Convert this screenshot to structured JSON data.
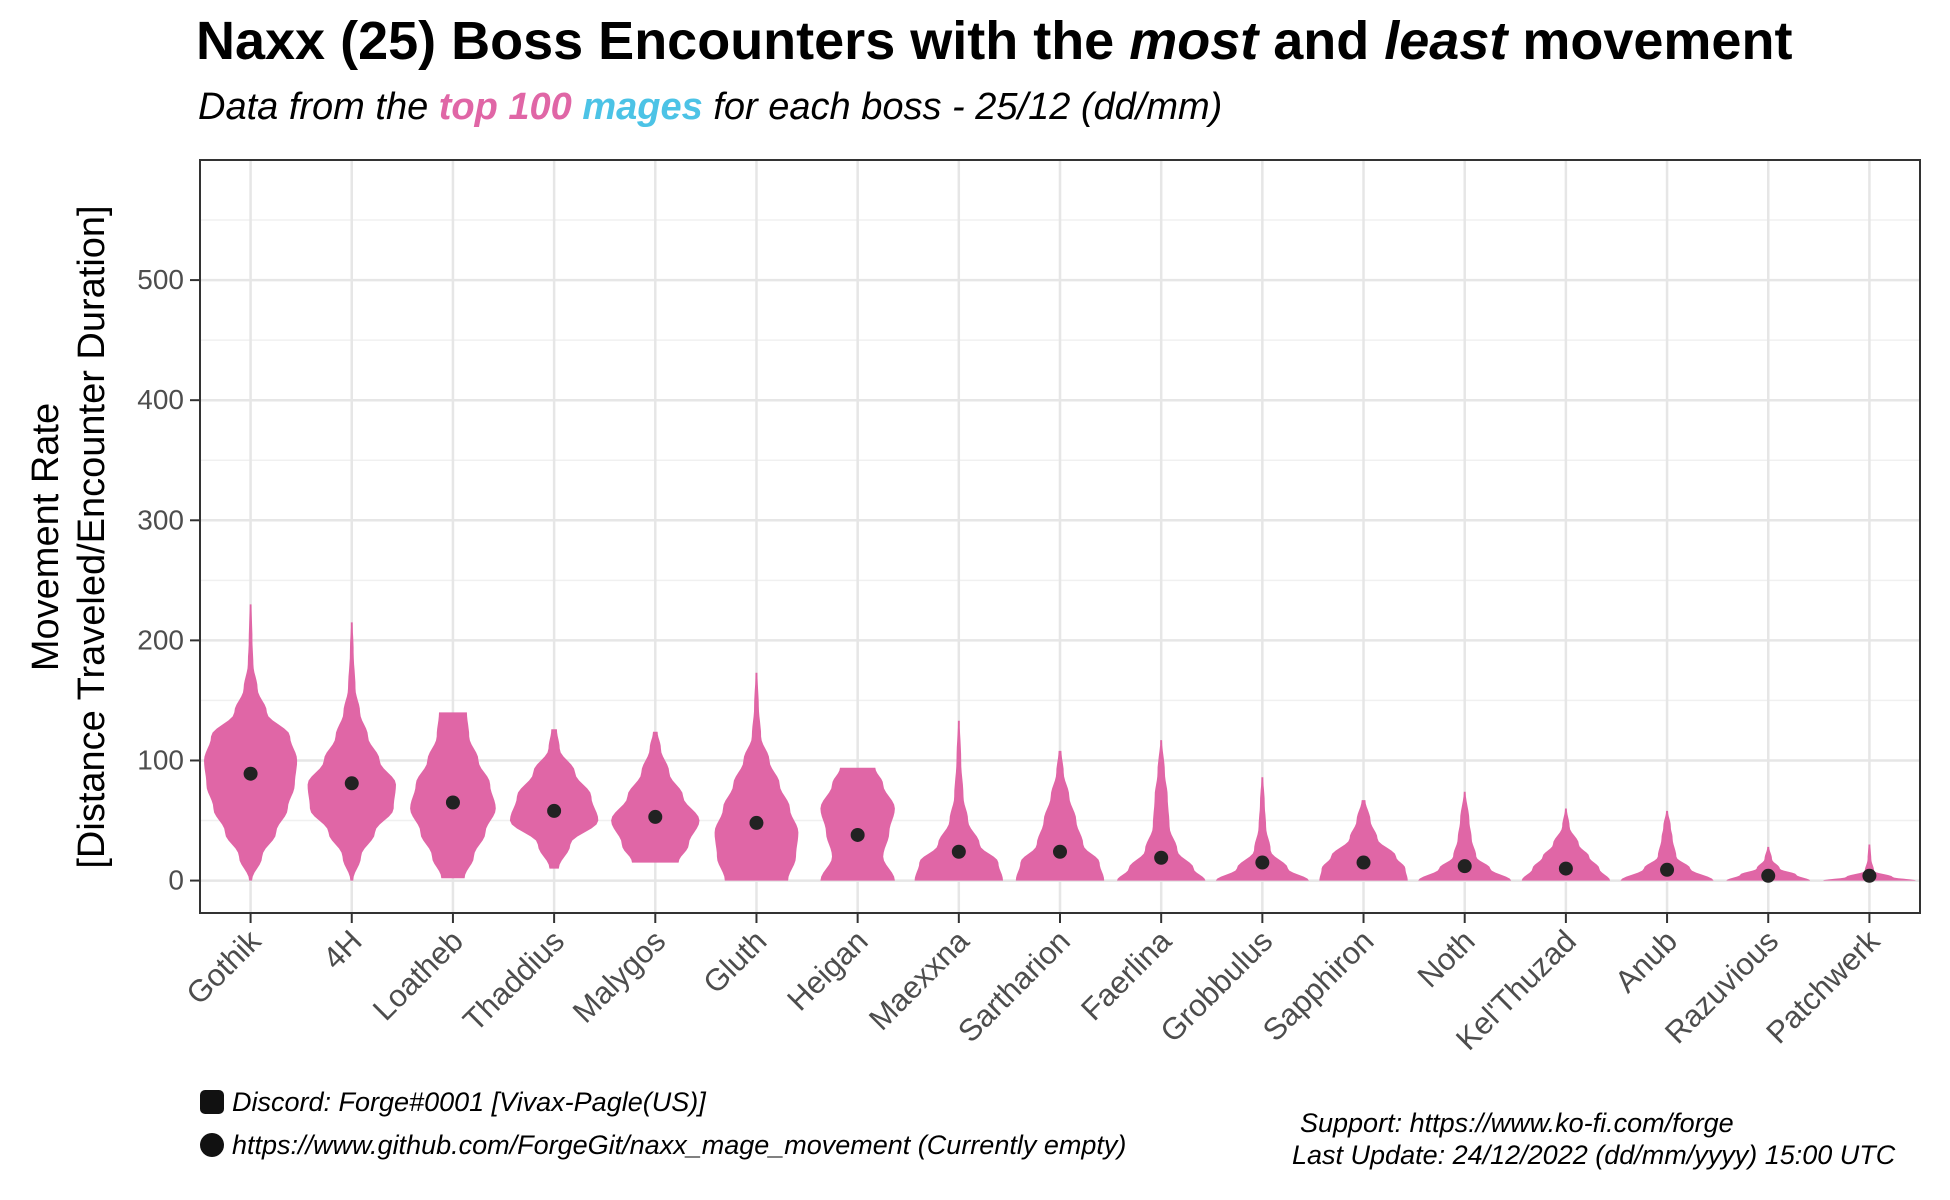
{
  "chart_data": {
    "type": "violin",
    "title_parts": [
      "Naxx (25) Boss Encounters with the ",
      "most",
      " and ",
      "least",
      " movement"
    ],
    "subtitle_parts": [
      "Data from the ",
      "top 100",
      " ",
      "mages",
      " for each boss - 25/12 (dd/mm)"
    ],
    "ylabel_line1": "Movement Rate",
    "ylabel_line2": "[Distance Traveled/Encounter Duration]",
    "ylim": [
      -27,
      600
    ],
    "yticks": [
      0,
      100,
      200,
      300,
      400,
      500
    ],
    "grid": true,
    "colors": {
      "violin": "#e066a6",
      "point": "#222222",
      "title_pink": "#e066a6",
      "title_blue": "#4cc3e6"
    },
    "categories": [
      "Gothik",
      "4H",
      "Loatheb",
      "Thaddius",
      "Malygos",
      "Gluth",
      "Heigan",
      "Maexxna",
      "Sartharion",
      "Faerlina",
      "Grobbulus",
      "Sapphiron",
      "Noth",
      "Kel'Thuzad",
      "Anub",
      "Razuvious",
      "Patchwerk"
    ],
    "means": [
      89,
      81,
      65,
      58,
      53,
      48,
      38,
      24,
      24,
      19,
      15,
      15,
      12,
      10,
      9,
      4,
      4
    ],
    "violins": [
      {
        "min": 0,
        "max": 230,
        "profile": [
          [
            0,
            0.03
          ],
          [
            20,
            0.25
          ],
          [
            40,
            0.55
          ],
          [
            60,
            0.8
          ],
          [
            80,
            0.95
          ],
          [
            100,
            1
          ],
          [
            120,
            0.85
          ],
          [
            140,
            0.35
          ],
          [
            160,
            0.15
          ],
          [
            180,
            0.06
          ],
          [
            200,
            0.04
          ],
          [
            230,
            0.02
          ]
        ]
      },
      {
        "min": 0,
        "max": 215,
        "profile": [
          [
            0,
            0.03
          ],
          [
            20,
            0.2
          ],
          [
            40,
            0.5
          ],
          [
            60,
            0.9
          ],
          [
            80,
            0.95
          ],
          [
            100,
            0.6
          ],
          [
            120,
            0.35
          ],
          [
            140,
            0.18
          ],
          [
            160,
            0.08
          ],
          [
            190,
            0.04
          ],
          [
            215,
            0.02
          ]
        ]
      },
      {
        "min": 2,
        "max": 140,
        "profile": [
          [
            2,
            0.25
          ],
          [
            20,
            0.45
          ],
          [
            40,
            0.7
          ],
          [
            60,
            0.92
          ],
          [
            80,
            0.8
          ],
          [
            100,
            0.55
          ],
          [
            120,
            0.35
          ],
          [
            140,
            0.3
          ]
        ]
      },
      {
        "min": 10,
        "max": 126,
        "profile": [
          [
            10,
            0.1
          ],
          [
            30,
            0.35
          ],
          [
            50,
            0.95
          ],
          [
            70,
            0.8
          ],
          [
            90,
            0.45
          ],
          [
            110,
            0.12
          ],
          [
            126,
            0.06
          ]
        ]
      },
      {
        "min": 15,
        "max": 124,
        "profile": [
          [
            15,
            0.5
          ],
          [
            30,
            0.72
          ],
          [
            50,
            0.95
          ],
          [
            70,
            0.6
          ],
          [
            90,
            0.3
          ],
          [
            110,
            0.12
          ],
          [
            124,
            0.05
          ]
        ]
      },
      {
        "min": 0,
        "max": 173,
        "profile": [
          [
            0,
            0.68
          ],
          [
            20,
            0.85
          ],
          [
            40,
            0.9
          ],
          [
            60,
            0.72
          ],
          [
            80,
            0.5
          ],
          [
            100,
            0.28
          ],
          [
            120,
            0.1
          ],
          [
            145,
            0.05
          ],
          [
            173,
            0.02
          ]
        ]
      },
      {
        "min": 0,
        "max": 94,
        "profile": [
          [
            0,
            0.8
          ],
          [
            20,
            0.55
          ],
          [
            40,
            0.68
          ],
          [
            60,
            0.8
          ],
          [
            80,
            0.55
          ],
          [
            94,
            0.38
          ]
        ]
      },
      {
        "min": 0,
        "max": 133,
        "profile": [
          [
            0,
            0.95
          ],
          [
            15,
            0.85
          ],
          [
            30,
            0.45
          ],
          [
            50,
            0.2
          ],
          [
            70,
            0.1
          ],
          [
            100,
            0.05
          ],
          [
            133,
            0.02
          ]
        ]
      },
      {
        "min": 0,
        "max": 108,
        "profile": [
          [
            0,
            0.95
          ],
          [
            15,
            0.85
          ],
          [
            30,
            0.5
          ],
          [
            50,
            0.35
          ],
          [
            70,
            0.2
          ],
          [
            90,
            0.08
          ],
          [
            108,
            0.03
          ]
        ]
      },
      {
        "min": 0,
        "max": 117,
        "profile": [
          [
            0,
            0.95
          ],
          [
            10,
            0.7
          ],
          [
            25,
            0.35
          ],
          [
            45,
            0.18
          ],
          [
            70,
            0.14
          ],
          [
            90,
            0.08
          ],
          [
            117,
            0.02
          ]
        ]
      },
      {
        "min": 0,
        "max": 86,
        "profile": [
          [
            0,
            1
          ],
          [
            10,
            0.55
          ],
          [
            25,
            0.18
          ],
          [
            45,
            0.08
          ],
          [
            65,
            0.05
          ],
          [
            86,
            0.02
          ]
        ]
      },
      {
        "min": 0,
        "max": 67,
        "profile": [
          [
            0,
            0.95
          ],
          [
            10,
            0.9
          ],
          [
            20,
            0.7
          ],
          [
            35,
            0.3
          ],
          [
            50,
            0.15
          ],
          [
            67,
            0.04
          ]
        ]
      },
      {
        "min": 0,
        "max": 74,
        "profile": [
          [
            0,
            1
          ],
          [
            10,
            0.55
          ],
          [
            20,
            0.25
          ],
          [
            35,
            0.15
          ],
          [
            50,
            0.1
          ],
          [
            74,
            0.02
          ]
        ]
      },
      {
        "min": 0,
        "max": 60,
        "profile": [
          [
            0,
            0.95
          ],
          [
            10,
            0.72
          ],
          [
            20,
            0.5
          ],
          [
            30,
            0.28
          ],
          [
            45,
            0.08
          ],
          [
            60,
            0.02
          ]
        ]
      },
      {
        "min": 0,
        "max": 58,
        "profile": [
          [
            0,
            1
          ],
          [
            10,
            0.5
          ],
          [
            20,
            0.2
          ],
          [
            35,
            0.12
          ],
          [
            45,
            0.08
          ],
          [
            58,
            0.02
          ]
        ]
      },
      {
        "min": 0,
        "max": 28,
        "profile": [
          [
            0,
            0.9
          ],
          [
            5,
            0.6
          ],
          [
            10,
            0.25
          ],
          [
            18,
            0.08
          ],
          [
            28,
            0.02
          ]
        ]
      },
      {
        "min": 0,
        "max": 30,
        "profile": [
          [
            0,
            1
          ],
          [
            3,
            0.5
          ],
          [
            8,
            0.1
          ],
          [
            18,
            0.04
          ],
          [
            30,
            0.02
          ]
        ]
      }
    ]
  },
  "footer": {
    "discord": "Discord: Forge#0001 [Vivax-Pagle(US)]",
    "github": "https://www.github.com/ForgeGit/naxx_mage_movement (Currently empty)",
    "support": "Support: https://www.ko-fi.com/forge",
    "last_update": "Last Update: 24/12/2022 (dd/mm/yyyy) 15:00 UTC"
  }
}
